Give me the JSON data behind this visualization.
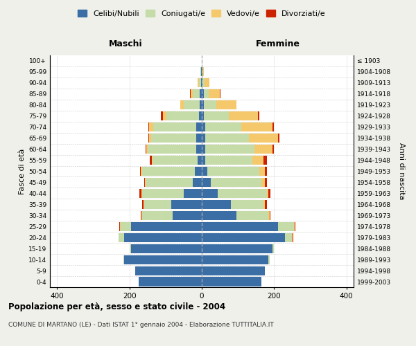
{
  "age_groups": [
    "0-4",
    "5-9",
    "10-14",
    "15-19",
    "20-24",
    "25-29",
    "30-34",
    "35-39",
    "40-44",
    "45-49",
    "50-54",
    "55-59",
    "60-64",
    "65-69",
    "70-74",
    "75-79",
    "80-84",
    "85-89",
    "90-94",
    "95-99",
    "100+"
  ],
  "birth_years": [
    "1999-2003",
    "1994-1998",
    "1989-1993",
    "1984-1988",
    "1979-1983",
    "1974-1978",
    "1969-1973",
    "1964-1968",
    "1959-1963",
    "1954-1958",
    "1949-1953",
    "1944-1948",
    "1939-1943",
    "1934-1938",
    "1929-1933",
    "1924-1928",
    "1919-1923",
    "1914-1918",
    "1909-1913",
    "1904-1908",
    "≤ 1903"
  ],
  "males": {
    "celibi": [
      175,
      185,
      215,
      195,
      215,
      195,
      80,
      85,
      50,
      25,
      20,
      12,
      15,
      15,
      15,
      8,
      5,
      5,
      2,
      1,
      0
    ],
    "coniugati": [
      0,
      0,
      2,
      5,
      15,
      30,
      85,
      75,
      115,
      130,
      145,
      125,
      135,
      125,
      120,
      90,
      45,
      20,
      5,
      2,
      0
    ],
    "vedovi": [
      0,
      0,
      0,
      0,
      0,
      2,
      2,
      2,
      2,
      2,
      3,
      2,
      3,
      5,
      10,
      10,
      10,
      5,
      5,
      0,
      0
    ],
    "divorziati": [
      0,
      0,
      0,
      0,
      1,
      1,
      2,
      3,
      5,
      3,
      2,
      5,
      3,
      2,
      2,
      5,
      0,
      2,
      0,
      0,
      0
    ]
  },
  "females": {
    "nubili": [
      165,
      175,
      185,
      195,
      230,
      210,
      95,
      80,
      45,
      25,
      15,
      10,
      10,
      10,
      10,
      5,
      5,
      5,
      2,
      1,
      0
    ],
    "coniugate": [
      0,
      0,
      2,
      5,
      20,
      45,
      90,
      90,
      135,
      140,
      145,
      130,
      135,
      120,
      100,
      70,
      35,
      15,
      5,
      2,
      0
    ],
    "vedove": [
      0,
      0,
      0,
      0,
      2,
      2,
      2,
      5,
      5,
      10,
      15,
      30,
      50,
      80,
      85,
      80,
      55,
      30,
      15,
      2,
      0
    ],
    "divorziate": [
      0,
      0,
      0,
      0,
      1,
      1,
      2,
      5,
      5,
      5,
      5,
      10,
      5,
      5,
      5,
      5,
      0,
      2,
      0,
      0,
      0
    ]
  },
  "colors": {
    "celibi": "#3a6ea5",
    "coniugati": "#c5dba8",
    "vedovi": "#f5c96b",
    "divorziati": "#cc2200"
  },
  "xlim": 420,
  "title": "Popolazione per età, sesso e stato civile - 2004",
  "subtitle": "COMUNE DI MARTANO (LE) - Dati ISTAT 1° gennaio 2004 - Elaborazione TUTTITALIA.IT",
  "ylabel_left": "Fasce di età",
  "ylabel_right": "Anni di nascita",
  "xlabel_left": "Maschi",
  "xlabel_right": "Femmine",
  "bg_color": "#f0f0eb",
  "plot_bg_color": "#ffffff"
}
